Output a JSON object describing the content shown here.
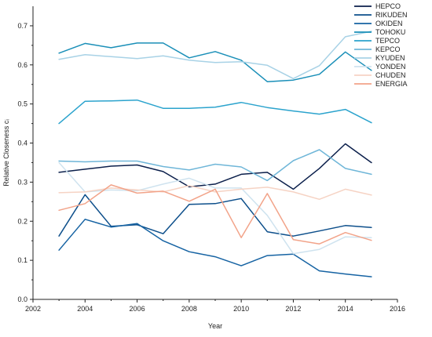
{
  "chart_data": {
    "type": "line",
    "title": "",
    "xlabel": "Year",
    "ylabel": "Relative Closeness cᵢ",
    "xlim": [
      2002,
      2016
    ],
    "ylim": [
      0.0,
      0.75
    ],
    "x_ticks": [
      2002,
      2004,
      2006,
      2008,
      2010,
      2012,
      2014,
      2016
    ],
    "y_ticks": [
      0.0,
      0.1,
      0.2,
      0.3,
      0.4,
      0.5,
      0.6,
      0.7
    ],
    "y_tick_labels": [
      "0.0",
      "0.1",
      "0.2",
      "0.3",
      "0.4",
      "0.5",
      "0.6",
      "0.7"
    ],
    "grid": false,
    "legend_position": "top-right",
    "x": [
      2003,
      2004,
      2005,
      2006,
      2007,
      2008,
      2009,
      2010,
      2011,
      2012,
      2013,
      2014,
      2015
    ],
    "series": [
      {
        "name": "HEPCO",
        "color": "#0b1f4b",
        "values": [
          0.325,
          0.333,
          0.341,
          0.344,
          0.327,
          0.288,
          0.295,
          0.32,
          0.325,
          0.282,
          0.335,
          0.398,
          0.35
        ]
      },
      {
        "name": "RIKUDEN",
        "color": "#0d4f8b",
        "values": [
          0.162,
          0.268,
          0.187,
          0.191,
          0.168,
          0.243,
          0.245,
          0.258,
          0.173,
          0.162,
          0.175,
          0.189,
          0.184
        ]
      },
      {
        "name": "OKIDEN",
        "color": "#1663a3",
        "values": [
          0.126,
          0.205,
          0.185,
          0.194,
          0.15,
          0.122,
          0.109,
          0.086,
          0.112,
          0.116,
          0.073,
          0.065,
          0.058
        ]
      },
      {
        "name": "TOHOKU",
        "color": "#1a8fb8",
        "values": [
          0.63,
          0.655,
          0.644,
          0.656,
          0.656,
          0.618,
          0.634,
          0.612,
          0.557,
          0.561,
          0.576,
          0.633,
          0.586
        ]
      },
      {
        "name": "TEPCO",
        "color": "#2ba3cd",
        "values": [
          0.45,
          0.507,
          0.508,
          0.51,
          0.489,
          0.489,
          0.492,
          0.504,
          0.491,
          0.482,
          0.474,
          0.486,
          0.452
        ]
      },
      {
        "name": "KEPCO",
        "color": "#6fb6d8",
        "values": [
          0.354,
          0.352,
          0.354,
          0.354,
          0.34,
          0.331,
          0.346,
          0.339,
          0.304,
          0.355,
          0.383,
          0.335,
          0.32
        ]
      },
      {
        "name": "KYUDEN",
        "color": "#a8d2e6",
        "values": [
          0.614,
          0.626,
          0.621,
          0.616,
          0.623,
          0.612,
          0.606,
          0.608,
          0.599,
          0.565,
          0.598,
          0.672,
          0.686
        ]
      },
      {
        "name": "YONDEN",
        "color": "#cfe3ef",
        "values": [
          0.35,
          0.275,
          0.28,
          0.278,
          0.295,
          0.31,
          0.285,
          0.285,
          0.215,
          0.117,
          0.128,
          0.16,
          0.158
        ]
      },
      {
        "name": "CHUDEN",
        "color": "#f6d3c4",
        "values": [
          0.273,
          0.275,
          0.285,
          0.28,
          0.275,
          0.291,
          0.275,
          0.282,
          0.287,
          0.275,
          0.256,
          0.282,
          0.267
        ]
      },
      {
        "name": "ENERGIA",
        "color": "#f2a389",
        "values": [
          0.228,
          0.245,
          0.293,
          0.272,
          0.277,
          0.251,
          0.282,
          0.158,
          0.271,
          0.153,
          0.142,
          0.171,
          0.151
        ]
      }
    ]
  }
}
